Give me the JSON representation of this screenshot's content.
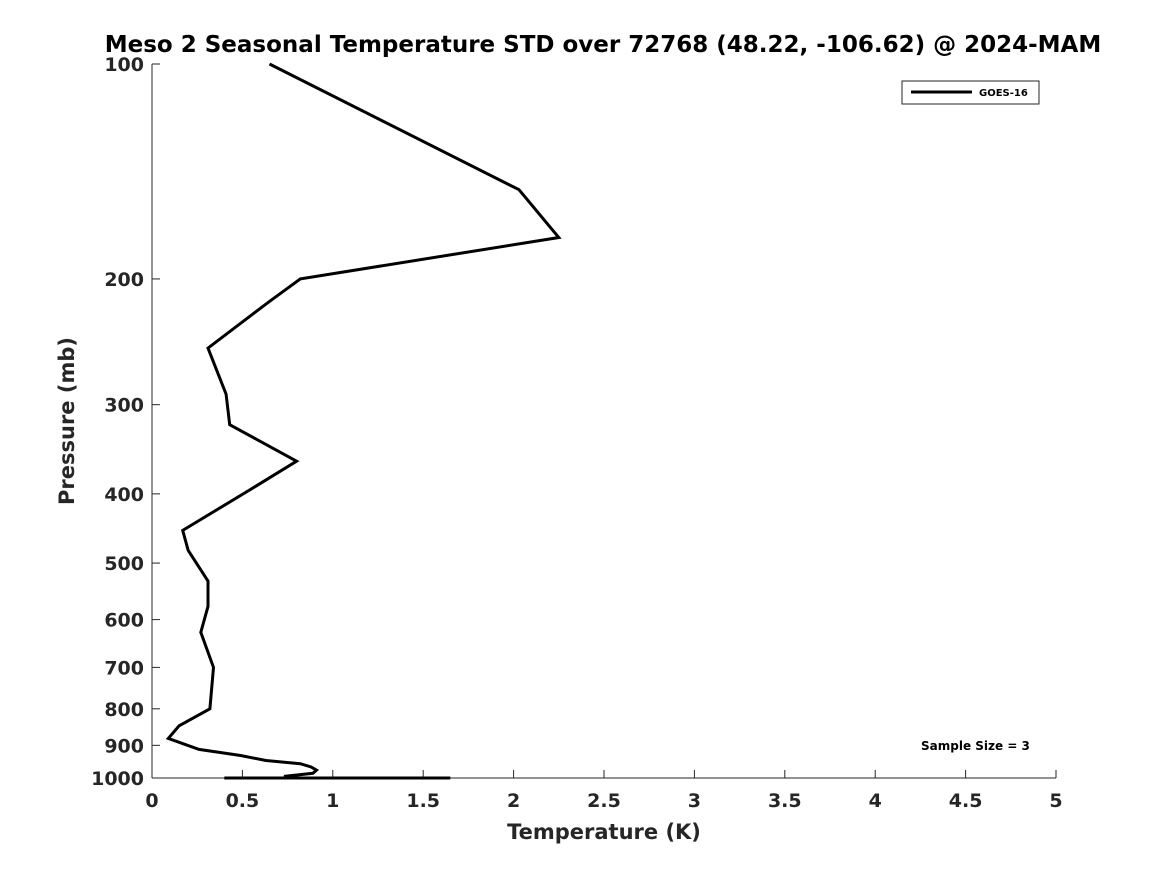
{
  "chart_data": {
    "type": "line",
    "title": "Meso 2 Seasonal Temperature STD over 72768 (48.22, -106.62) @ 2024-MAM",
    "xlabel": "Temperature (K)",
    "ylabel": "Pressure (mb)",
    "xlim": [
      0,
      5
    ],
    "ylim": [
      1000,
      100
    ],
    "y_scale": "log",
    "y_reversed": true,
    "x_ticks": [
      "0",
      "0.5",
      "1",
      "1.5",
      "2",
      "2.5",
      "3",
      "3.5",
      "4",
      "4.5",
      "5"
    ],
    "y_ticks": [
      "100",
      "200",
      "300",
      "400",
      "500",
      "600",
      "700",
      "800",
      "900",
      "1000"
    ],
    "grid": false,
    "legend": {
      "location": "top-right",
      "entries": [
        "GOES-16"
      ]
    },
    "annotation": "Sample Size = 3",
    "series": [
      {
        "name": "GOES-16",
        "color": "#000000",
        "points": [
          [
            0.65,
            100
          ],
          [
            2.03,
            150
          ],
          [
            2.25,
            175
          ],
          [
            0.82,
            200
          ],
          [
            0.65,
            215
          ],
          [
            0.31,
            250
          ],
          [
            0.41,
            290
          ],
          [
            0.43,
            320
          ],
          [
            0.8,
            360
          ],
          [
            0.54,
            395
          ],
          [
            0.17,
            450
          ],
          [
            0.2,
            480
          ],
          [
            0.31,
            530
          ],
          [
            0.31,
            575
          ],
          [
            0.27,
            625
          ],
          [
            0.34,
            700
          ],
          [
            0.32,
            800
          ],
          [
            0.15,
            845
          ],
          [
            0.09,
            880
          ],
          [
            0.26,
            912
          ],
          [
            0.49,
            930
          ],
          [
            0.63,
            945
          ],
          [
            0.82,
            955
          ],
          [
            0.88,
            965
          ],
          [
            0.91,
            975
          ],
          [
            0.89,
            985
          ],
          [
            0.73,
            995
          ],
          [
            0.77,
            1000
          ],
          [
            0.92,
            1000
          ],
          [
            0.8,
            1000
          ],
          [
            1.03,
            1000
          ],
          [
            0.4,
            1000
          ],
          [
            1.65,
            1000
          ],
          [
            1.28,
            1000
          ],
          [
            1.22,
            1000
          ],
          [
            1.27,
            1000
          ]
        ]
      }
    ]
  }
}
